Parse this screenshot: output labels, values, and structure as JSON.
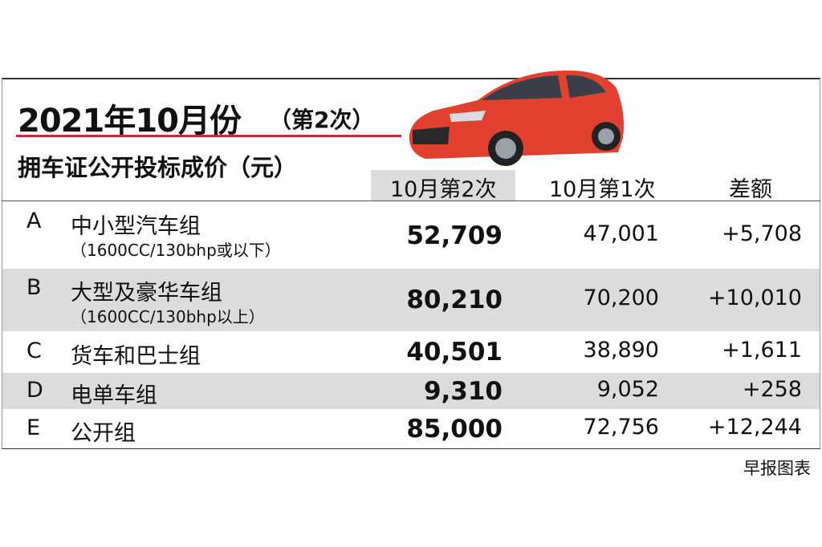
{
  "header": {
    "title": "2021年10月份",
    "subtitle": "（第2次）",
    "heading": "拥车证公开投标成价（元）"
  },
  "table": {
    "columns": [
      "10月第2次",
      "10月第1次",
      "差额"
    ],
    "rows": [
      {
        "category": "A",
        "name": "中小型汽车组",
        "note": "（1600CC/130bhp或以下）",
        "values": [
          "52,709",
          "47,001",
          "+5,708"
        ]
      },
      {
        "category": "B",
        "name": "大型及豪华车组",
        "note": "（1600CC/130bhp以上）",
        "values": [
          "80,210",
          "70,200",
          "+10,010"
        ]
      },
      {
        "category": "C",
        "name": "货车和巴士组",
        "values": [
          "40,501",
          "38,890",
          "+1,611"
        ]
      },
      {
        "category": "D",
        "name": "电单车组",
        "values": [
          "9,310",
          "9,052",
          "+258"
        ]
      },
      {
        "category": "E",
        "name": "公开组",
        "values": [
          "85,000",
          "72,756",
          "+12,244"
        ]
      }
    ]
  },
  "footer": {
    "source": "早报图表"
  }
}
